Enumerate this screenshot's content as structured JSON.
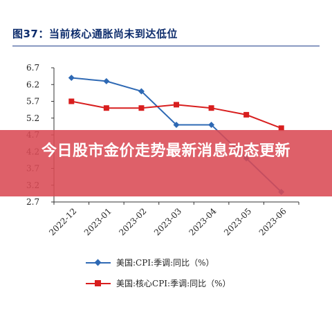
{
  "title": "图37：当前核心通胀尚未到达低位",
  "banner": "今日股市金价走势最新消息动态更新",
  "chart_data": {
    "type": "line",
    "categories": [
      "2022-12",
      "2023-01",
      "2023-02",
      "2023-03",
      "2023-04",
      "2023-05",
      "2023-06"
    ],
    "y_ticks": [
      "6.7",
      "6.2",
      "5.7",
      "5.2",
      "4.7",
      "4.2",
      "3.7",
      "3.2",
      "2.7"
    ],
    "ylim": [
      2.7,
      6.7
    ],
    "series": [
      {
        "name": "美国:CPI:季调:同比（%）",
        "color": "#2e69b4",
        "marker": "diamond",
        "values": [
          6.4,
          6.3,
          6.0,
          5.0,
          5.0,
          4.0,
          3.0
        ]
      },
      {
        "name": "美国:核心CPI:季调:同比（%）",
        "color": "#d81e1e",
        "marker": "square",
        "values": [
          5.7,
          5.5,
          5.5,
          5.6,
          5.5,
          5.3,
          4.9
        ]
      }
    ],
    "grid": false,
    "legend_position": "bottom"
  }
}
